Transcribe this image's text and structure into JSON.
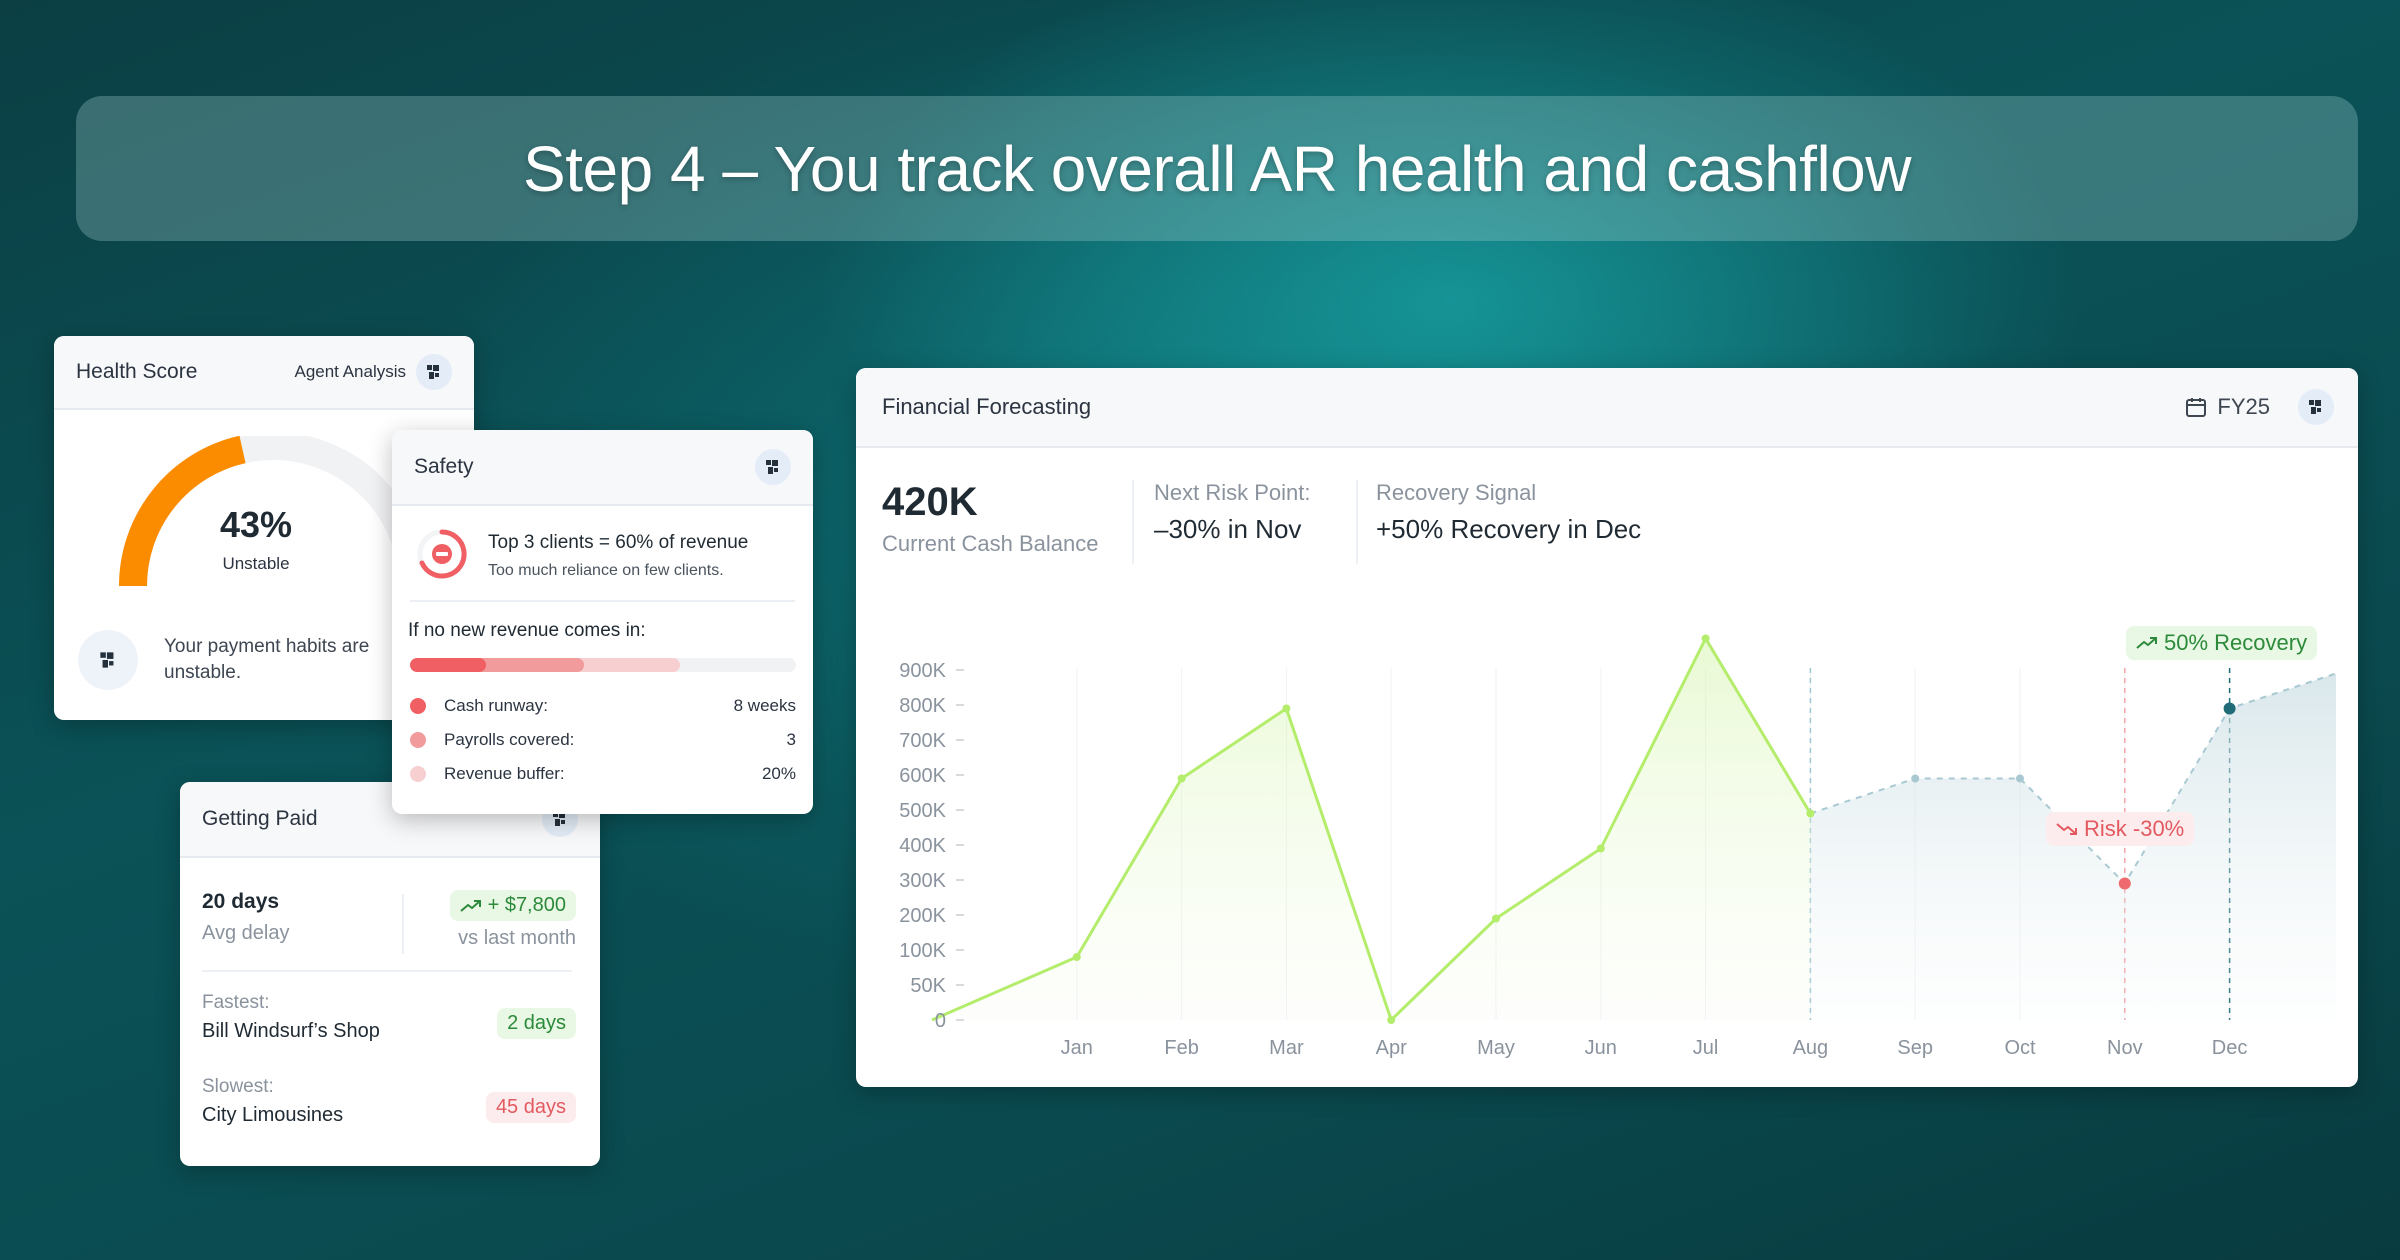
{
  "banner": {
    "title": "Step 4 – You track overall AR health and cashflow"
  },
  "health": {
    "title": "Health Score",
    "agent_label": "Agent Analysis",
    "score": "43%",
    "score_fraction": 0.43,
    "status": "Unstable",
    "note": "Your payment habits are unstable."
  },
  "safety": {
    "title": "Safety",
    "warning_title": "Top 3 clients = 60% of revenue",
    "warning_sub": "Too much reliance on few clients.",
    "question": "If no new revenue comes in:",
    "metrics": [
      {
        "label": "Cash runway:",
        "value": "8 weeks",
        "color": "#ef5f63"
      },
      {
        "label": "Payrolls covered:",
        "value": "3",
        "color": "#f29b9d"
      },
      {
        "label": "Revenue buffer:",
        "value": "20%",
        "color": "#f8cfd0"
      }
    ]
  },
  "paid": {
    "title": "Getting Paid",
    "avg_delay_value": "20 days",
    "avg_delay_label": "Avg delay",
    "change": "+ $7,800",
    "change_label": "vs last month",
    "fastest_label": "Fastest:",
    "fastest_name": "Bill Windsurf’s Shop",
    "fastest_days": "2 days",
    "slowest_label": "Slowest:",
    "slowest_name": "City Limousines",
    "slowest_days": "45 days"
  },
  "forecast": {
    "title": "Financial Forecasting",
    "period": "FY25",
    "cash_value": "420K",
    "cash_label": "Current Cash Balance",
    "risk_label": "Next Risk Point:",
    "risk_value": "–30% in Nov",
    "recovery_label": "Recovery Signal",
    "recovery_value": "+50% Recovery in Dec",
    "recovery_badge": "50% Recovery",
    "risk_badge": "Risk -30%"
  },
  "colors": {
    "actual_line": "#b4ec6b",
    "forecast_line": "#a9c9d2",
    "risk": "#ee6a6e",
    "recovery": "#1f6b78",
    "gauge": "#fb8c00"
  },
  "chart_data": {
    "type": "line",
    "categories": [
      "",
      "Jan",
      "Feb",
      "Mar",
      "Apr",
      "May",
      "Jun",
      "Jul",
      "Aug",
      "Sep",
      "Oct",
      "Nov",
      "Dec",
      ""
    ],
    "y_ticks": [
      "0",
      "50K",
      "100K",
      "200K",
      "300K",
      "400K",
      "500K",
      "600K",
      "700K",
      "800K",
      "900K"
    ],
    "series": [
      {
        "type": "actual",
        "values": [
          0,
          90000,
          590000,
          790000,
          0,
          190000,
          390000,
          990000,
          490000,
          null,
          null,
          null,
          null,
          null
        ]
      },
      {
        "type": "forecast",
        "values": [
          null,
          null,
          null,
          null,
          null,
          null,
          null,
          null,
          490000,
          590000,
          590000,
          290000,
          790000,
          890000
        ]
      }
    ]
  }
}
